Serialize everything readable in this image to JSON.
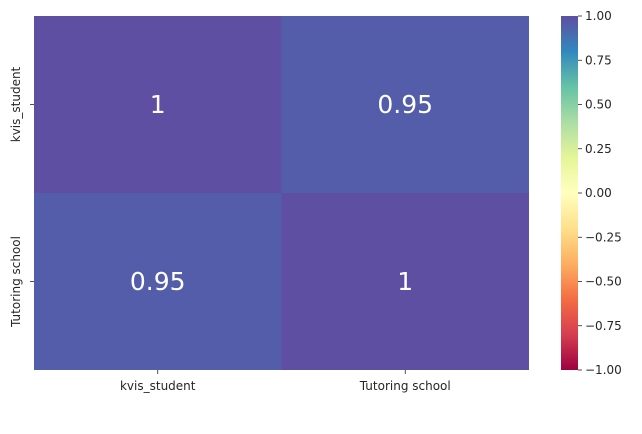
{
  "chart_data": {
    "type": "heatmap",
    "title": "",
    "xlabel": "",
    "ylabel": "",
    "x_categories": [
      "kvis_student",
      "Tutoring school"
    ],
    "y_categories": [
      "kvis_student",
      "Tutoring school"
    ],
    "values": [
      [
        1,
        0.95
      ],
      [
        0.95,
        1
      ]
    ],
    "cell_labels": [
      [
        "1",
        "0.95"
      ],
      [
        "0.95",
        "1"
      ]
    ],
    "colormap": "Spectral",
    "vmin": -1,
    "vmax": 1,
    "colorbar_ticks": [
      1.0,
      0.75,
      0.5,
      0.25,
      0.0,
      -0.25,
      -0.5,
      -0.75,
      -1.0
    ],
    "colorbar_tick_labels": [
      "1.00",
      "0.75",
      "0.50",
      "0.25",
      "0.00",
      "−0.25",
      "−0.50",
      "−0.75",
      "−1.00"
    ],
    "colors": {
      "value_1_00": "#5e4fa2",
      "value_0_95": "#545ea8",
      "text": "#ffffff",
      "axis": "#262626"
    }
  }
}
